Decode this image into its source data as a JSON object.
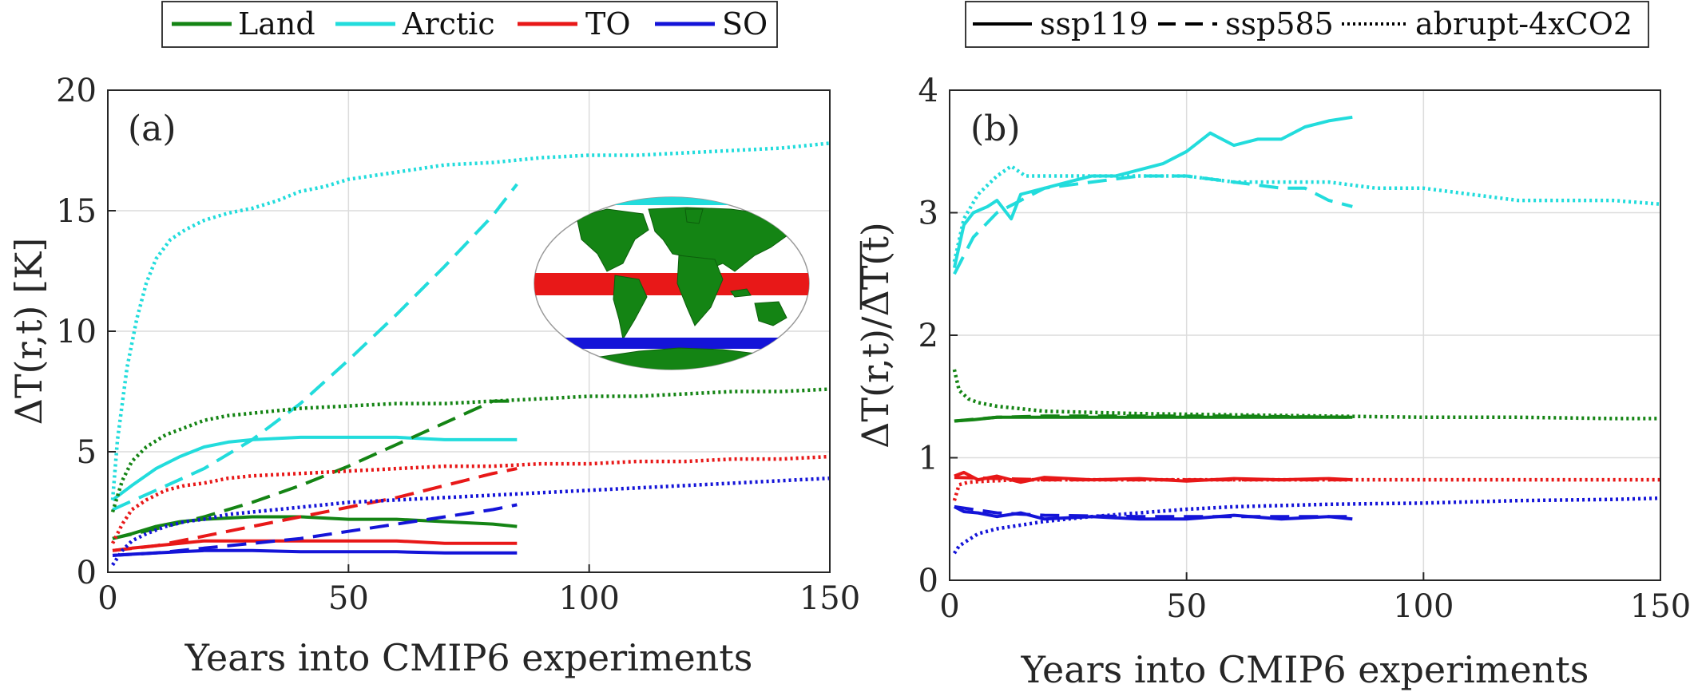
{
  "colors": {
    "Land": "#148414",
    "Arctic": "#22dcdc",
    "TO": "#e81818",
    "SO": "#1414d8"
  },
  "region_legend": [
    "Land",
    "Arctic",
    "TO",
    "SO"
  ],
  "scenario_legend": [
    {
      "name": "ssp119",
      "dash": "solid"
    },
    {
      "name": "ssp585",
      "dash": "dashed"
    },
    {
      "name": "abrupt-4xCO2",
      "dash": "dotted"
    }
  ],
  "chart_data": [
    {
      "type": "line",
      "panel_label": "(a)",
      "xlabel": "Years into CMIP6 experiments",
      "ylabel": "ΔT(r,t) [K]",
      "xlim": [
        0,
        150
      ],
      "ylim": [
        0,
        20
      ],
      "xticks": [
        "0",
        "50",
        "100",
        "150"
      ],
      "yticks": [
        "0",
        "5",
        "10",
        "15",
        "20"
      ],
      "grid": true,
      "inset": "world map highlighting Arctic (cyan), tropical ocean band (red), Southern Ocean band (blue), land (green)",
      "series": [
        {
          "region": "Arctic",
          "scenario": "abrupt-4xCO2",
          "x": [
            1,
            2,
            4,
            6,
            8,
            10,
            13,
            16,
            20,
            25,
            30,
            35,
            40,
            45,
            50,
            60,
            70,
            80,
            90,
            100,
            110,
            120,
            130,
            140,
            150
          ],
          "y": [
            3.0,
            5.5,
            8.5,
            10.5,
            12.0,
            13.0,
            13.8,
            14.2,
            14.6,
            14.9,
            15.1,
            15.4,
            15.8,
            16.0,
            16.3,
            16.6,
            16.9,
            17.0,
            17.2,
            17.3,
            17.3,
            17.4,
            17.5,
            17.6,
            17.8
          ]
        },
        {
          "region": "Arctic",
          "scenario": "ssp585",
          "x": [
            1,
            10,
            20,
            30,
            40,
            50,
            60,
            70,
            80,
            85
          ],
          "y": [
            2.6,
            3.4,
            4.3,
            5.5,
            7.0,
            8.8,
            10.7,
            12.7,
            14.8,
            16.1
          ]
        },
        {
          "region": "Arctic",
          "scenario": "ssp119",
          "x": [
            1,
            5,
            10,
            15,
            20,
            25,
            30,
            40,
            50,
            60,
            70,
            80,
            85
          ],
          "y": [
            3.0,
            3.6,
            4.3,
            4.8,
            5.2,
            5.4,
            5.5,
            5.6,
            5.6,
            5.6,
            5.5,
            5.5,
            5.5
          ]
        },
        {
          "region": "Land",
          "scenario": "abrupt-4xCO2",
          "x": [
            1,
            3,
            5,
            8,
            12,
            16,
            20,
            25,
            30,
            40,
            50,
            60,
            70,
            80,
            90,
            100,
            110,
            120,
            130,
            140,
            150
          ],
          "y": [
            2.5,
            3.8,
            4.6,
            5.2,
            5.7,
            6.0,
            6.3,
            6.5,
            6.6,
            6.8,
            6.9,
            7.0,
            7.0,
            7.1,
            7.2,
            7.3,
            7.3,
            7.4,
            7.5,
            7.5,
            7.6
          ]
        },
        {
          "region": "Land",
          "scenario": "ssp585",
          "x": [
            1,
            10,
            20,
            30,
            40,
            50,
            60,
            70,
            80,
            85
          ],
          "y": [
            1.4,
            1.8,
            2.3,
            2.9,
            3.6,
            4.4,
            5.3,
            6.2,
            7.1,
            7.1
          ]
        },
        {
          "region": "Land",
          "scenario": "ssp119",
          "x": [
            1,
            5,
            10,
            15,
            20,
            30,
            40,
            50,
            60,
            70,
            80,
            85
          ],
          "y": [
            1.4,
            1.6,
            1.9,
            2.1,
            2.2,
            2.3,
            2.3,
            2.2,
            2.2,
            2.1,
            2.0,
            1.9
          ]
        },
        {
          "region": "TO",
          "scenario": "abrupt-4xCO2",
          "x": [
            1,
            3,
            5,
            8,
            12,
            16,
            20,
            25,
            30,
            40,
            50,
            60,
            70,
            80,
            90,
            100,
            110,
            120,
            130,
            140,
            150
          ],
          "y": [
            1.2,
            2.0,
            2.6,
            3.0,
            3.4,
            3.6,
            3.7,
            3.9,
            4.0,
            4.1,
            4.2,
            4.3,
            4.4,
            4.4,
            4.5,
            4.5,
            4.6,
            4.6,
            4.7,
            4.7,
            4.8
          ]
        },
        {
          "region": "TO",
          "scenario": "ssp585",
          "x": [
            1,
            10,
            20,
            30,
            40,
            50,
            60,
            70,
            80,
            85
          ],
          "y": [
            0.9,
            1.1,
            1.5,
            1.9,
            2.3,
            2.7,
            3.1,
            3.6,
            4.1,
            4.3
          ]
        },
        {
          "region": "TO",
          "scenario": "ssp119",
          "x": [
            1,
            5,
            10,
            15,
            20,
            30,
            40,
            50,
            60,
            70,
            80,
            85
          ],
          "y": [
            0.9,
            1.0,
            1.1,
            1.2,
            1.3,
            1.3,
            1.3,
            1.3,
            1.3,
            1.2,
            1.2,
            1.2
          ]
        },
        {
          "region": "SO",
          "scenario": "abrupt-4xCO2",
          "x": [
            1,
            3,
            5,
            8,
            12,
            16,
            20,
            25,
            30,
            40,
            50,
            60,
            70,
            80,
            90,
            100,
            110,
            120,
            130,
            140,
            150
          ],
          "y": [
            0.3,
            0.9,
            1.3,
            1.6,
            1.9,
            2.1,
            2.2,
            2.4,
            2.5,
            2.7,
            2.9,
            3.0,
            3.1,
            3.2,
            3.3,
            3.4,
            3.5,
            3.6,
            3.7,
            3.8,
            3.9
          ]
        },
        {
          "region": "SO",
          "scenario": "ssp585",
          "x": [
            1,
            10,
            20,
            30,
            40,
            50,
            60,
            70,
            80,
            85
          ],
          "y": [
            0.7,
            0.8,
            1.0,
            1.2,
            1.4,
            1.7,
            2.0,
            2.3,
            2.6,
            2.8
          ]
        },
        {
          "region": "SO",
          "scenario": "ssp119",
          "x": [
            1,
            5,
            10,
            15,
            20,
            30,
            40,
            50,
            60,
            70,
            80,
            85
          ],
          "y": [
            0.7,
            0.75,
            0.8,
            0.85,
            0.9,
            0.9,
            0.85,
            0.85,
            0.85,
            0.8,
            0.8,
            0.8
          ]
        }
      ]
    },
    {
      "type": "line",
      "panel_label": "(b)",
      "xlabel": "Years into CMIP6 experiments",
      "ylabel": "ΔT(r,t)/ΔT(t)",
      "xlim": [
        0,
        150
      ],
      "ylim": [
        0,
        4
      ],
      "xticks": [
        "0",
        "50",
        "100",
        "150"
      ],
      "yticks": [
        "0",
        "1",
        "2",
        "3",
        "4"
      ],
      "grid": true,
      "series": [
        {
          "region": "Arctic",
          "scenario": "ssp119",
          "x": [
            1,
            3,
            5,
            8,
            10,
            13,
            15,
            20,
            25,
            30,
            35,
            40,
            45,
            50,
            55,
            60,
            65,
            70,
            75,
            80,
            85
          ],
          "y": [
            2.55,
            2.9,
            3.0,
            3.05,
            3.1,
            2.95,
            3.15,
            3.2,
            3.25,
            3.3,
            3.3,
            3.35,
            3.4,
            3.5,
            3.65,
            3.55,
            3.6,
            3.6,
            3.7,
            3.75,
            3.78
          ]
        },
        {
          "region": "Arctic",
          "scenario": "ssp585",
          "x": [
            1,
            5,
            10,
            15,
            20,
            30,
            40,
            50,
            60,
            70,
            75,
            80,
            85
          ],
          "y": [
            2.5,
            2.8,
            3.0,
            3.1,
            3.2,
            3.25,
            3.3,
            3.3,
            3.25,
            3.2,
            3.2,
            3.1,
            3.05
          ]
        },
        {
          "region": "Arctic",
          "scenario": "abrupt-4xCO2",
          "x": [
            1,
            3,
            6,
            10,
            13,
            16,
            20,
            30,
            40,
            50,
            60,
            70,
            80,
            90,
            100,
            110,
            120,
            130,
            140,
            150
          ],
          "y": [
            2.6,
            2.95,
            3.15,
            3.3,
            3.38,
            3.3,
            3.3,
            3.3,
            3.3,
            3.3,
            3.25,
            3.25,
            3.25,
            3.2,
            3.2,
            3.15,
            3.1,
            3.1,
            3.1,
            3.07
          ]
        },
        {
          "region": "Land",
          "scenario": "abrupt-4xCO2",
          "x": [
            1,
            2,
            4,
            6,
            10,
            15,
            20,
            30,
            40,
            60,
            80,
            100,
            120,
            140,
            150
          ],
          "y": [
            1.72,
            1.55,
            1.48,
            1.45,
            1.42,
            1.4,
            1.38,
            1.37,
            1.36,
            1.35,
            1.34,
            1.33,
            1.33,
            1.32,
            1.32
          ]
        },
        {
          "region": "Land",
          "scenario": "ssp585",
          "x": [
            1,
            10,
            20,
            40,
            60,
            85
          ],
          "y": [
            1.3,
            1.33,
            1.34,
            1.34,
            1.34,
            1.33
          ]
        },
        {
          "region": "Land",
          "scenario": "ssp119",
          "x": [
            1,
            5,
            10,
            20,
            30,
            40,
            50,
            60,
            70,
            80,
            85
          ],
          "y": [
            1.3,
            1.31,
            1.33,
            1.33,
            1.33,
            1.33,
            1.33,
            1.33,
            1.33,
            1.33,
            1.33
          ]
        },
        {
          "region": "TO",
          "scenario": "abrupt-4xCO2",
          "x": [
            1,
            2,
            4,
            8,
            15,
            30,
            60,
            90,
            120,
            150
          ],
          "y": [
            0.65,
            0.78,
            0.8,
            0.81,
            0.82,
            0.82,
            0.82,
            0.82,
            0.82,
            0.82
          ]
        },
        {
          "region": "TO",
          "scenario": "ssp585",
          "x": [
            1,
            20,
            40,
            60,
            85
          ],
          "y": [
            0.84,
            0.82,
            0.82,
            0.82,
            0.82
          ]
        },
        {
          "region": "TO",
          "scenario": "ssp119",
          "x": [
            1,
            3,
            6,
            10,
            15,
            20,
            30,
            40,
            50,
            60,
            70,
            80,
            85
          ],
          "y": [
            0.85,
            0.88,
            0.82,
            0.85,
            0.8,
            0.84,
            0.82,
            0.83,
            0.81,
            0.83,
            0.82,
            0.83,
            0.82
          ]
        },
        {
          "region": "SO",
          "scenario": "abrupt-4xCO2",
          "x": [
            1,
            2,
            4,
            6,
            10,
            15,
            20,
            30,
            40,
            50,
            60,
            80,
            100,
            120,
            140,
            150
          ],
          "y": [
            0.22,
            0.28,
            0.33,
            0.38,
            0.42,
            0.45,
            0.48,
            0.52,
            0.55,
            0.58,
            0.6,
            0.62,
            0.63,
            0.65,
            0.66,
            0.67
          ]
        },
        {
          "region": "SO",
          "scenario": "ssp585",
          "x": [
            1,
            10,
            20,
            40,
            60,
            85
          ],
          "y": [
            0.6,
            0.55,
            0.53,
            0.52,
            0.52,
            0.52
          ]
        },
        {
          "region": "SO",
          "scenario": "ssp119",
          "x": [
            1,
            3,
            6,
            10,
            15,
            20,
            30,
            40,
            50,
            60,
            70,
            80,
            85
          ],
          "y": [
            0.6,
            0.56,
            0.55,
            0.52,
            0.55,
            0.5,
            0.52,
            0.5,
            0.5,
            0.53,
            0.5,
            0.52,
            0.5
          ]
        }
      ]
    }
  ]
}
